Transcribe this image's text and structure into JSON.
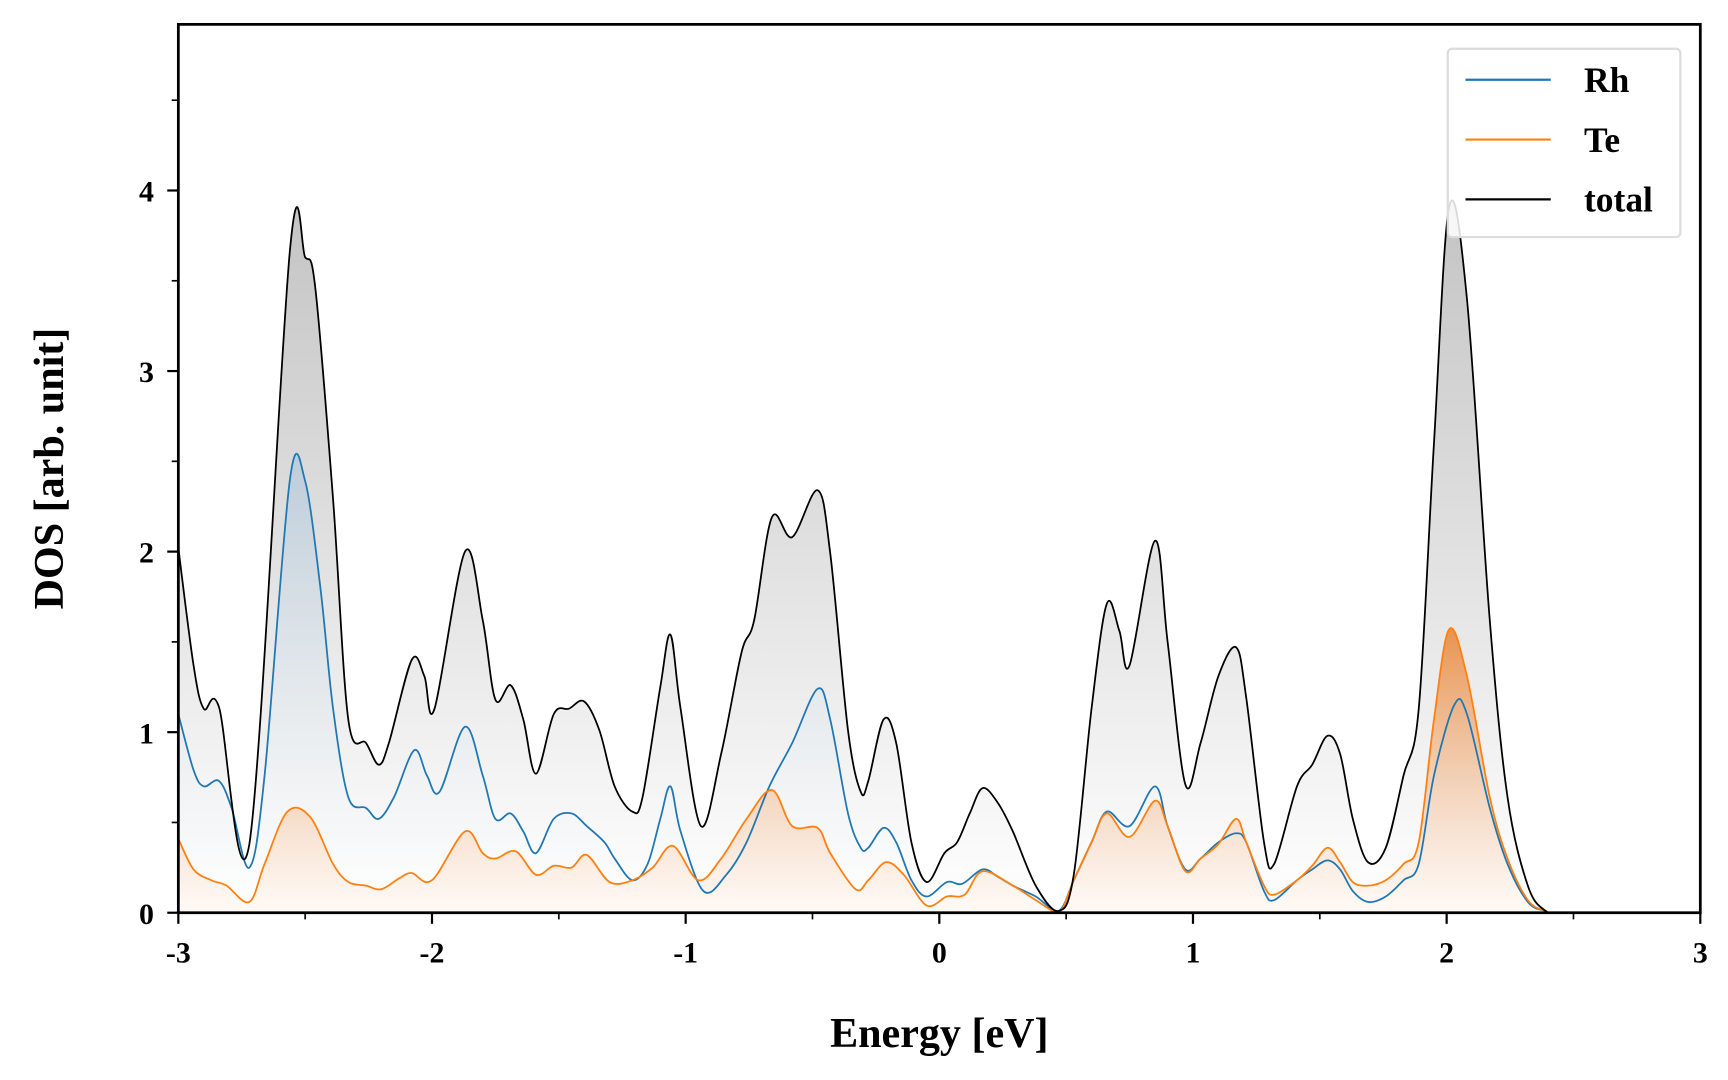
{
  "chart_data": {
    "type": "area",
    "title": "",
    "xlabel": "Energy [eV]",
    "ylabel": "DOS [arb. unit]",
    "xlim": [
      -3,
      3
    ],
    "ylim": [
      0,
      4.92
    ],
    "xticks": [
      -3,
      -2,
      -1,
      0,
      1,
      2,
      3
    ],
    "xtick_labels": [
      "-3",
      "-2",
      "-1",
      "0",
      "1",
      "2",
      "3"
    ],
    "yticks": [
      0,
      1,
      2,
      3,
      4
    ],
    "ytick_labels": [
      "0",
      "1",
      "2",
      "3",
      "4"
    ],
    "grid": false,
    "legend_position": "top-right",
    "series": [
      {
        "name": "Rh",
        "color": "#1f77b4",
        "fill": "#c9d9e6",
        "points": [
          [
            -3.0,
            1.1
          ],
          [
            -2.94,
            0.79
          ],
          [
            -2.9,
            0.7
          ],
          [
            -2.84,
            0.73
          ],
          [
            -2.79,
            0.58
          ],
          [
            -2.72,
            0.25
          ],
          [
            -2.66,
            0.76
          ],
          [
            -2.56,
            2.4
          ],
          [
            -2.5,
            2.39
          ],
          [
            -2.44,
            1.8
          ],
          [
            -2.39,
            1.13
          ],
          [
            -2.33,
            0.64
          ],
          [
            -2.26,
            0.58
          ],
          [
            -2.21,
            0.52
          ],
          [
            -2.15,
            0.64
          ],
          [
            -2.07,
            0.9
          ],
          [
            -2.02,
            0.76
          ],
          [
            -1.97,
            0.67
          ],
          [
            -1.87,
            1.03
          ],
          [
            -1.8,
            0.76
          ],
          [
            -1.75,
            0.52
          ],
          [
            -1.69,
            0.55
          ],
          [
            -1.64,
            0.45
          ],
          [
            -1.59,
            0.33
          ],
          [
            -1.52,
            0.52
          ],
          [
            -1.45,
            0.55
          ],
          [
            -1.39,
            0.48
          ],
          [
            -1.32,
            0.39
          ],
          [
            -1.28,
            0.3
          ],
          [
            -1.21,
            0.18
          ],
          [
            -1.15,
            0.27
          ],
          [
            -1.1,
            0.52
          ],
          [
            -1.06,
            0.7
          ],
          [
            -1.02,
            0.45
          ],
          [
            -0.93,
            0.12
          ],
          [
            -0.84,
            0.21
          ],
          [
            -0.76,
            0.39
          ],
          [
            -0.67,
            0.7
          ],
          [
            -0.58,
            0.94
          ],
          [
            -0.48,
            1.24
          ],
          [
            -0.43,
            1.07
          ],
          [
            -0.36,
            0.55
          ],
          [
            -0.31,
            0.36
          ],
          [
            -0.28,
            0.36
          ],
          [
            -0.22,
            0.47
          ],
          [
            -0.17,
            0.39
          ],
          [
            -0.11,
            0.18
          ],
          [
            -0.05,
            0.09
          ],
          [
            0.03,
            0.17
          ],
          [
            0.09,
            0.16
          ],
          [
            0.17,
            0.24
          ],
          [
            0.23,
            0.2
          ],
          [
            0.29,
            0.15
          ],
          [
            0.38,
            0.09
          ],
          [
            0.47,
            0.01
          ],
          [
            0.53,
            0.18
          ],
          [
            0.6,
            0.39
          ],
          [
            0.66,
            0.56
          ],
          [
            0.75,
            0.48
          ],
          [
            0.85,
            0.7
          ],
          [
            0.9,
            0.48
          ],
          [
            0.97,
            0.24
          ],
          [
            1.03,
            0.3
          ],
          [
            1.1,
            0.39
          ],
          [
            1.17,
            0.44
          ],
          [
            1.21,
            0.39
          ],
          [
            1.28,
            0.12
          ],
          [
            1.32,
            0.07
          ],
          [
            1.41,
            0.18
          ],
          [
            1.47,
            0.24
          ],
          [
            1.53,
            0.29
          ],
          [
            1.58,
            0.24
          ],
          [
            1.63,
            0.12
          ],
          [
            1.69,
            0.06
          ],
          [
            1.76,
            0.09
          ],
          [
            1.83,
            0.18
          ],
          [
            1.89,
            0.27
          ],
          [
            1.95,
            0.76
          ],
          [
            2.03,
            1.15
          ],
          [
            2.08,
            1.1
          ],
          [
            2.17,
            0.58
          ],
          [
            2.24,
            0.27
          ],
          [
            2.32,
            0.06
          ],
          [
            2.39,
            0.01
          ],
          [
            2.45,
            0
          ],
          [
            3.0,
            0
          ]
        ]
      },
      {
        "name": "Te",
        "color": "#ff7f0e",
        "fill": "#f0a060",
        "points": [
          [
            -3.0,
            0.41
          ],
          [
            -2.94,
            0.24
          ],
          [
            -2.87,
            0.18
          ],
          [
            -2.81,
            0.15
          ],
          [
            -2.72,
            0.06
          ],
          [
            -2.66,
            0.27
          ],
          [
            -2.57,
            0.56
          ],
          [
            -2.48,
            0.53
          ],
          [
            -2.39,
            0.27
          ],
          [
            -2.33,
            0.17
          ],
          [
            -2.26,
            0.15
          ],
          [
            -2.2,
            0.13
          ],
          [
            -2.13,
            0.19
          ],
          [
            -2.08,
            0.22
          ],
          [
            -2.0,
            0.18
          ],
          [
            -1.87,
            0.45
          ],
          [
            -1.8,
            0.33
          ],
          [
            -1.75,
            0.3
          ],
          [
            -1.67,
            0.34
          ],
          [
            -1.59,
            0.21
          ],
          [
            -1.52,
            0.26
          ],
          [
            -1.45,
            0.25
          ],
          [
            -1.39,
            0.32
          ],
          [
            -1.3,
            0.17
          ],
          [
            -1.21,
            0.18
          ],
          [
            -1.13,
            0.25
          ],
          [
            -1.05,
            0.37
          ],
          [
            -0.95,
            0.18
          ],
          [
            -0.86,
            0.3
          ],
          [
            -0.76,
            0.52
          ],
          [
            -0.66,
            0.68
          ],
          [
            -0.58,
            0.48
          ],
          [
            -0.48,
            0.47
          ],
          [
            -0.43,
            0.33
          ],
          [
            -0.33,
            0.13
          ],
          [
            -0.28,
            0.18
          ],
          [
            -0.21,
            0.28
          ],
          [
            -0.14,
            0.21
          ],
          [
            -0.05,
            0.04
          ],
          [
            0.03,
            0.09
          ],
          [
            0.1,
            0.1
          ],
          [
            0.17,
            0.23
          ],
          [
            0.29,
            0.15
          ],
          [
            0.38,
            0.07
          ],
          [
            0.47,
            0
          ],
          [
            0.53,
            0.18
          ],
          [
            0.6,
            0.39
          ],
          [
            0.66,
            0.55
          ],
          [
            0.75,
            0.42
          ],
          [
            0.85,
            0.62
          ],
          [
            0.9,
            0.48
          ],
          [
            0.97,
            0.23
          ],
          [
            1.03,
            0.3
          ],
          [
            1.1,
            0.38
          ],
          [
            1.17,
            0.52
          ],
          [
            1.21,
            0.39
          ],
          [
            1.28,
            0.15
          ],
          [
            1.32,
            0.1
          ],
          [
            1.41,
            0.18
          ],
          [
            1.47,
            0.26
          ],
          [
            1.53,
            0.36
          ],
          [
            1.58,
            0.28
          ],
          [
            1.63,
            0.17
          ],
          [
            1.69,
            0.15
          ],
          [
            1.76,
            0.18
          ],
          [
            1.83,
            0.27
          ],
          [
            1.89,
            0.39
          ],
          [
            1.95,
            1.07
          ],
          [
            2.01,
            1.57
          ],
          [
            2.08,
            1.31
          ],
          [
            2.17,
            0.64
          ],
          [
            2.24,
            0.3
          ],
          [
            2.32,
            0.07
          ],
          [
            2.39,
            0.01
          ],
          [
            2.45,
            0
          ],
          [
            3.0,
            0
          ]
        ]
      },
      {
        "name": "total",
        "color": "#000000",
        "fill": "#c8c8c8",
        "points": [
          [
            -3.0,
            2.02
          ],
          [
            -2.94,
            1.37
          ],
          [
            -2.9,
            1.13
          ],
          [
            -2.84,
            1.14
          ],
          [
            -2.72,
            0.38
          ],
          [
            -2.56,
            3.67
          ],
          [
            -2.5,
            3.63
          ],
          [
            -2.46,
            3.46
          ],
          [
            -2.39,
            2.29
          ],
          [
            -2.33,
            1.07
          ],
          [
            -2.26,
            0.94
          ],
          [
            -2.21,
            0.82
          ],
          [
            -2.17,
            0.94
          ],
          [
            -2.08,
            1.4
          ],
          [
            -2.03,
            1.31
          ],
          [
            -1.99,
            1.13
          ],
          [
            -1.87,
            2.0
          ],
          [
            -1.8,
            1.62
          ],
          [
            -1.75,
            1.18
          ],
          [
            -1.69,
            1.26
          ],
          [
            -1.64,
            1.07
          ],
          [
            -1.59,
            0.77
          ],
          [
            -1.52,
            1.1
          ],
          [
            -1.46,
            1.13
          ],
          [
            -1.4,
            1.17
          ],
          [
            -1.34,
            1.01
          ],
          [
            -1.28,
            0.7
          ],
          [
            -1.21,
            0.56
          ],
          [
            -1.17,
            0.64
          ],
          [
            -1.1,
            1.25
          ],
          [
            -1.06,
            1.54
          ],
          [
            -1.02,
            1.13
          ],
          [
            -0.94,
            0.48
          ],
          [
            -0.86,
            0.88
          ],
          [
            -0.78,
            1.44
          ],
          [
            -0.73,
            1.62
          ],
          [
            -0.66,
            2.19
          ],
          [
            -0.58,
            2.08
          ],
          [
            -0.48,
            2.34
          ],
          [
            -0.43,
            1.99
          ],
          [
            -0.36,
            1.01
          ],
          [
            -0.31,
            0.67
          ],
          [
            -0.28,
            0.73
          ],
          [
            -0.22,
            1.07
          ],
          [
            -0.17,
            0.94
          ],
          [
            -0.11,
            0.39
          ],
          [
            -0.05,
            0.17
          ],
          [
            0.02,
            0.33
          ],
          [
            0.07,
            0.39
          ],
          [
            0.12,
            0.55
          ],
          [
            0.17,
            0.69
          ],
          [
            0.23,
            0.61
          ],
          [
            0.29,
            0.45
          ],
          [
            0.38,
            0.15
          ],
          [
            0.47,
            0.01
          ],
          [
            0.53,
            0.21
          ],
          [
            0.6,
            1.13
          ],
          [
            0.66,
            1.71
          ],
          [
            0.71,
            1.56
          ],
          [
            0.75,
            1.37
          ],
          [
            0.85,
            2.06
          ],
          [
            0.9,
            1.5
          ],
          [
            0.97,
            0.71
          ],
          [
            1.03,
            0.94
          ],
          [
            1.1,
            1.31
          ],
          [
            1.17,
            1.47
          ],
          [
            1.21,
            1.19
          ],
          [
            1.28,
            0.39
          ],
          [
            1.32,
            0.27
          ],
          [
            1.41,
            0.7
          ],
          [
            1.47,
            0.82
          ],
          [
            1.53,
            0.98
          ],
          [
            1.58,
            0.88
          ],
          [
            1.63,
            0.52
          ],
          [
            1.69,
            0.28
          ],
          [
            1.76,
            0.36
          ],
          [
            1.83,
            0.76
          ],
          [
            1.89,
            1.13
          ],
          [
            1.95,
            2.6
          ],
          [
            2.01,
            3.91
          ],
          [
            2.08,
            3.4
          ],
          [
            2.17,
            1.62
          ],
          [
            2.24,
            0.64
          ],
          [
            2.32,
            0.15
          ],
          [
            2.39,
            0.01
          ],
          [
            2.45,
            0
          ],
          [
            3.0,
            0
          ]
        ]
      }
    ]
  }
}
